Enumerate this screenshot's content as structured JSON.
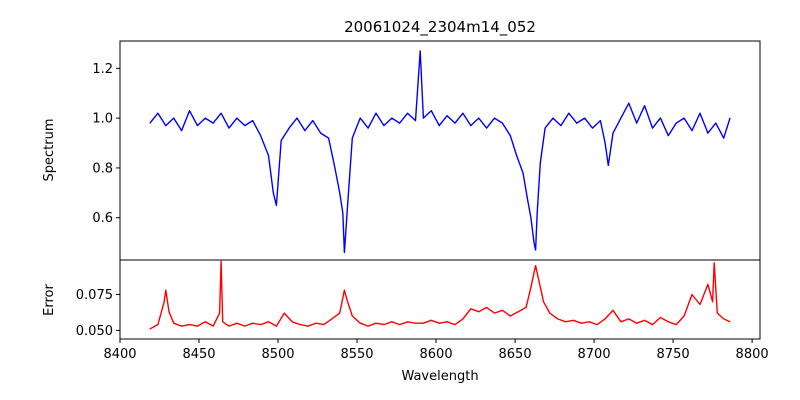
{
  "chart_data": [
    {
      "type": "line",
      "title": "20061024_2304m14_052",
      "xlabel": "",
      "ylabel": "Spectrum",
      "xlim": [
        8400,
        8805
      ],
      "ylim": [
        0.43,
        1.31
      ],
      "xticks": [],
      "yticks": [
        0.6,
        0.8,
        1.0,
        1.2
      ],
      "ytick_labels": [
        "0.6",
        "0.8",
        "1.0",
        "1.2"
      ],
      "grid": false,
      "series": [
        {
          "color": "#0000ff",
          "x": [
            8419,
            8424,
            8429,
            8434,
            8439,
            8444,
            8449,
            8454,
            8459,
            8464,
            8469,
            8474,
            8479,
            8484,
            8489,
            8494,
            8497,
            8499,
            8502,
            8507,
            8512,
            8517,
            8522,
            8527,
            8532,
            8536,
            8539,
            8541,
            8542,
            8544,
            8547,
            8552,
            8557,
            8562,
            8567,
            8572,
            8577,
            8582,
            8587,
            8590,
            8592,
            8597,
            8602,
            8607,
            8612,
            8617,
            8622,
            8627,
            8632,
            8637,
            8642,
            8647,
            8651,
            8655,
            8658,
            8660,
            8662,
            8663,
            8664,
            8666,
            8669,
            8674,
            8679,
            8684,
            8689,
            8694,
            8699,
            8704,
            8707,
            8709,
            8712,
            8717,
            8722,
            8727,
            8732,
            8737,
            8742,
            8747,
            8752,
            8757,
            8762,
            8767,
            8772,
            8777,
            8782,
            8786
          ],
          "values": [
            0.98,
            1.02,
            0.97,
            1.0,
            0.95,
            1.03,
            0.97,
            1.0,
            0.98,
            1.02,
            0.96,
            1.0,
            0.97,
            0.99,
            0.93,
            0.85,
            0.7,
            0.65,
            0.91,
            0.96,
            1.0,
            0.95,
            0.99,
            0.94,
            0.92,
            0.8,
            0.7,
            0.62,
            0.46,
            0.65,
            0.92,
            1.0,
            0.96,
            1.02,
            0.97,
            1.0,
            0.98,
            1.02,
            0.99,
            1.27,
            1.0,
            1.03,
            0.97,
            1.01,
            0.98,
            1.02,
            0.97,
            1.0,
            0.96,
            1.0,
            0.98,
            0.93,
            0.85,
            0.78,
            0.67,
            0.6,
            0.5,
            0.47,
            0.62,
            0.82,
            0.96,
            1.0,
            0.97,
            1.02,
            0.98,
            1.0,
            0.96,
            0.99,
            0.9,
            0.81,
            0.94,
            1.0,
            1.06,
            0.98,
            1.05,
            0.96,
            1.0,
            0.93,
            0.98,
            1.0,
            0.95,
            1.02,
            0.94,
            0.98,
            0.92,
            1.0
          ]
        }
      ]
    },
    {
      "type": "line",
      "title": "",
      "xlabel": "Wavelength",
      "ylabel": "Error",
      "xlim": [
        8400,
        8805
      ],
      "ylim": [
        0.044,
        0.099
      ],
      "xticks": [
        8400,
        8450,
        8500,
        8550,
        8600,
        8650,
        8700,
        8750,
        8800
      ],
      "xtick_labels": [
        "8400",
        "8450",
        "8500",
        "8550",
        "8600",
        "8650",
        "8700",
        "8750",
        "8800"
      ],
      "yticks": [
        0.05,
        0.075
      ],
      "ytick_labels": [
        "0.050",
        "0.075"
      ],
      "grid": false,
      "series": [
        {
          "color": "#ff0000",
          "x": [
            8419,
            8424,
            8428,
            8429,
            8431,
            8434,
            8439,
            8444,
            8449,
            8454,
            8459,
            8463,
            8464,
            8465,
            8469,
            8474,
            8479,
            8484,
            8489,
            8494,
            8499,
            8504,
            8509,
            8514,
            8519,
            8524,
            8529,
            8534,
            8539,
            8542,
            8544,
            8547,
            8552,
            8557,
            8562,
            8567,
            8572,
            8577,
            8582,
            8587,
            8592,
            8597,
            8602,
            8607,
            8612,
            8617,
            8622,
            8627,
            8632,
            8637,
            8642,
            8647,
            8652,
            8657,
            8660,
            8662,
            8663,
            8665,
            8668,
            8672,
            8677,
            8682,
            8687,
            8692,
            8697,
            8702,
            8707,
            8712,
            8717,
            8722,
            8727,
            8732,
            8737,
            8742,
            8747,
            8752,
            8757,
            8762,
            8767,
            8772,
            8775,
            8776,
            8778,
            8782,
            8786
          ],
          "values": [
            0.051,
            0.054,
            0.07,
            0.078,
            0.063,
            0.055,
            0.053,
            0.054,
            0.053,
            0.056,
            0.053,
            0.062,
            0.098,
            0.056,
            0.053,
            0.055,
            0.053,
            0.055,
            0.054,
            0.056,
            0.053,
            0.062,
            0.056,
            0.054,
            0.053,
            0.055,
            0.054,
            0.058,
            0.062,
            0.078,
            0.07,
            0.06,
            0.055,
            0.053,
            0.055,
            0.054,
            0.056,
            0.054,
            0.056,
            0.055,
            0.055,
            0.057,
            0.055,
            0.056,
            0.054,
            0.058,
            0.065,
            0.063,
            0.066,
            0.062,
            0.064,
            0.06,
            0.063,
            0.066,
            0.08,
            0.09,
            0.095,
            0.085,
            0.07,
            0.062,
            0.058,
            0.056,
            0.057,
            0.055,
            0.056,
            0.054,
            0.058,
            0.064,
            0.056,
            0.058,
            0.055,
            0.057,
            0.054,
            0.059,
            0.056,
            0.054,
            0.06,
            0.075,
            0.068,
            0.082,
            0.07,
            0.097,
            0.062,
            0.058,
            0.056
          ]
        }
      ]
    }
  ]
}
